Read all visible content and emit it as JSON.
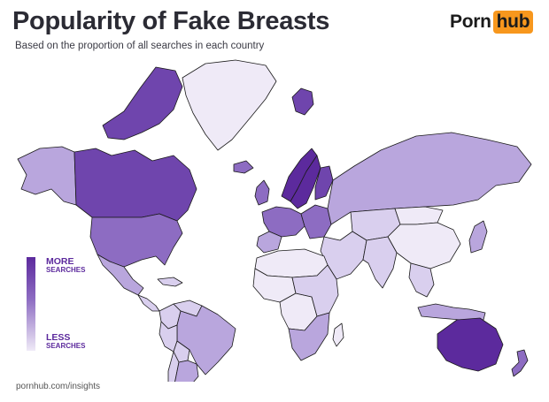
{
  "header": {
    "title": "Popularity of Fake Breasts",
    "subtitle": "Based on the proportion of all searches in each country"
  },
  "logo": {
    "part1": "Porn",
    "part2": "hub",
    "accent_color": "#f7971d"
  },
  "legend": {
    "top_line1": "MORE",
    "top_line2": "SEARCHES",
    "bottom_line1": "LESS",
    "bottom_line2": "SEARCHES",
    "color_high": "#5c2a9d",
    "color_low": "#efeaf7"
  },
  "footer": {
    "source": "pornhub.com/insights"
  },
  "map_data": {
    "scale": [
      "#efeaf7",
      "#d9cfee",
      "#b9a6dd",
      "#8d6cc2",
      "#6f45ad",
      "#5c2a9d"
    ],
    "regions": [
      {
        "id": "alaska",
        "level": 2
      },
      {
        "id": "canada",
        "level": 4
      },
      {
        "id": "canada-arctic",
        "level": 4
      },
      {
        "id": "greenland",
        "level": 0
      },
      {
        "id": "usa",
        "level": 3
      },
      {
        "id": "mexico",
        "level": 2
      },
      {
        "id": "central-america",
        "level": 1
      },
      {
        "id": "caribbean",
        "level": 1
      },
      {
        "id": "colombia",
        "level": 1
      },
      {
        "id": "venezuela",
        "level": 1
      },
      {
        "id": "brazil",
        "level": 2
      },
      {
        "id": "peru",
        "level": 1
      },
      {
        "id": "bolivia",
        "level": 1
      },
      {
        "id": "chile",
        "level": 1
      },
      {
        "id": "argentina",
        "level": 2
      },
      {
        "id": "iceland",
        "level": 3
      },
      {
        "id": "uk",
        "level": 3
      },
      {
        "id": "norway",
        "level": 5
      },
      {
        "id": "sweden",
        "level": 5
      },
      {
        "id": "finland",
        "level": 4
      },
      {
        "id": "western-europe",
        "level": 3
      },
      {
        "id": "iberia",
        "level": 2
      },
      {
        "id": "eastern-europe",
        "level": 3
      },
      {
        "id": "svalbard",
        "level": 4
      },
      {
        "id": "russia",
        "level": 2
      },
      {
        "id": "north-africa",
        "level": 0
      },
      {
        "id": "west-africa",
        "level": 0
      },
      {
        "id": "central-africa",
        "level": 0
      },
      {
        "id": "east-africa",
        "level": 1
      },
      {
        "id": "southern-africa",
        "level": 2
      },
      {
        "id": "madagascar",
        "level": 0
      },
      {
        "id": "middle-east",
        "level": 1
      },
      {
        "id": "central-asia",
        "level": 1
      },
      {
        "id": "india",
        "level": 1
      },
      {
        "id": "china",
        "level": 0
      },
      {
        "id": "mongolia",
        "level": 0
      },
      {
        "id": "japan",
        "level": 2
      },
      {
        "id": "southeast-asia",
        "level": 1
      },
      {
        "id": "indonesia",
        "level": 2
      },
      {
        "id": "australia",
        "level": 5
      },
      {
        "id": "new-zealand",
        "level": 3
      }
    ]
  }
}
